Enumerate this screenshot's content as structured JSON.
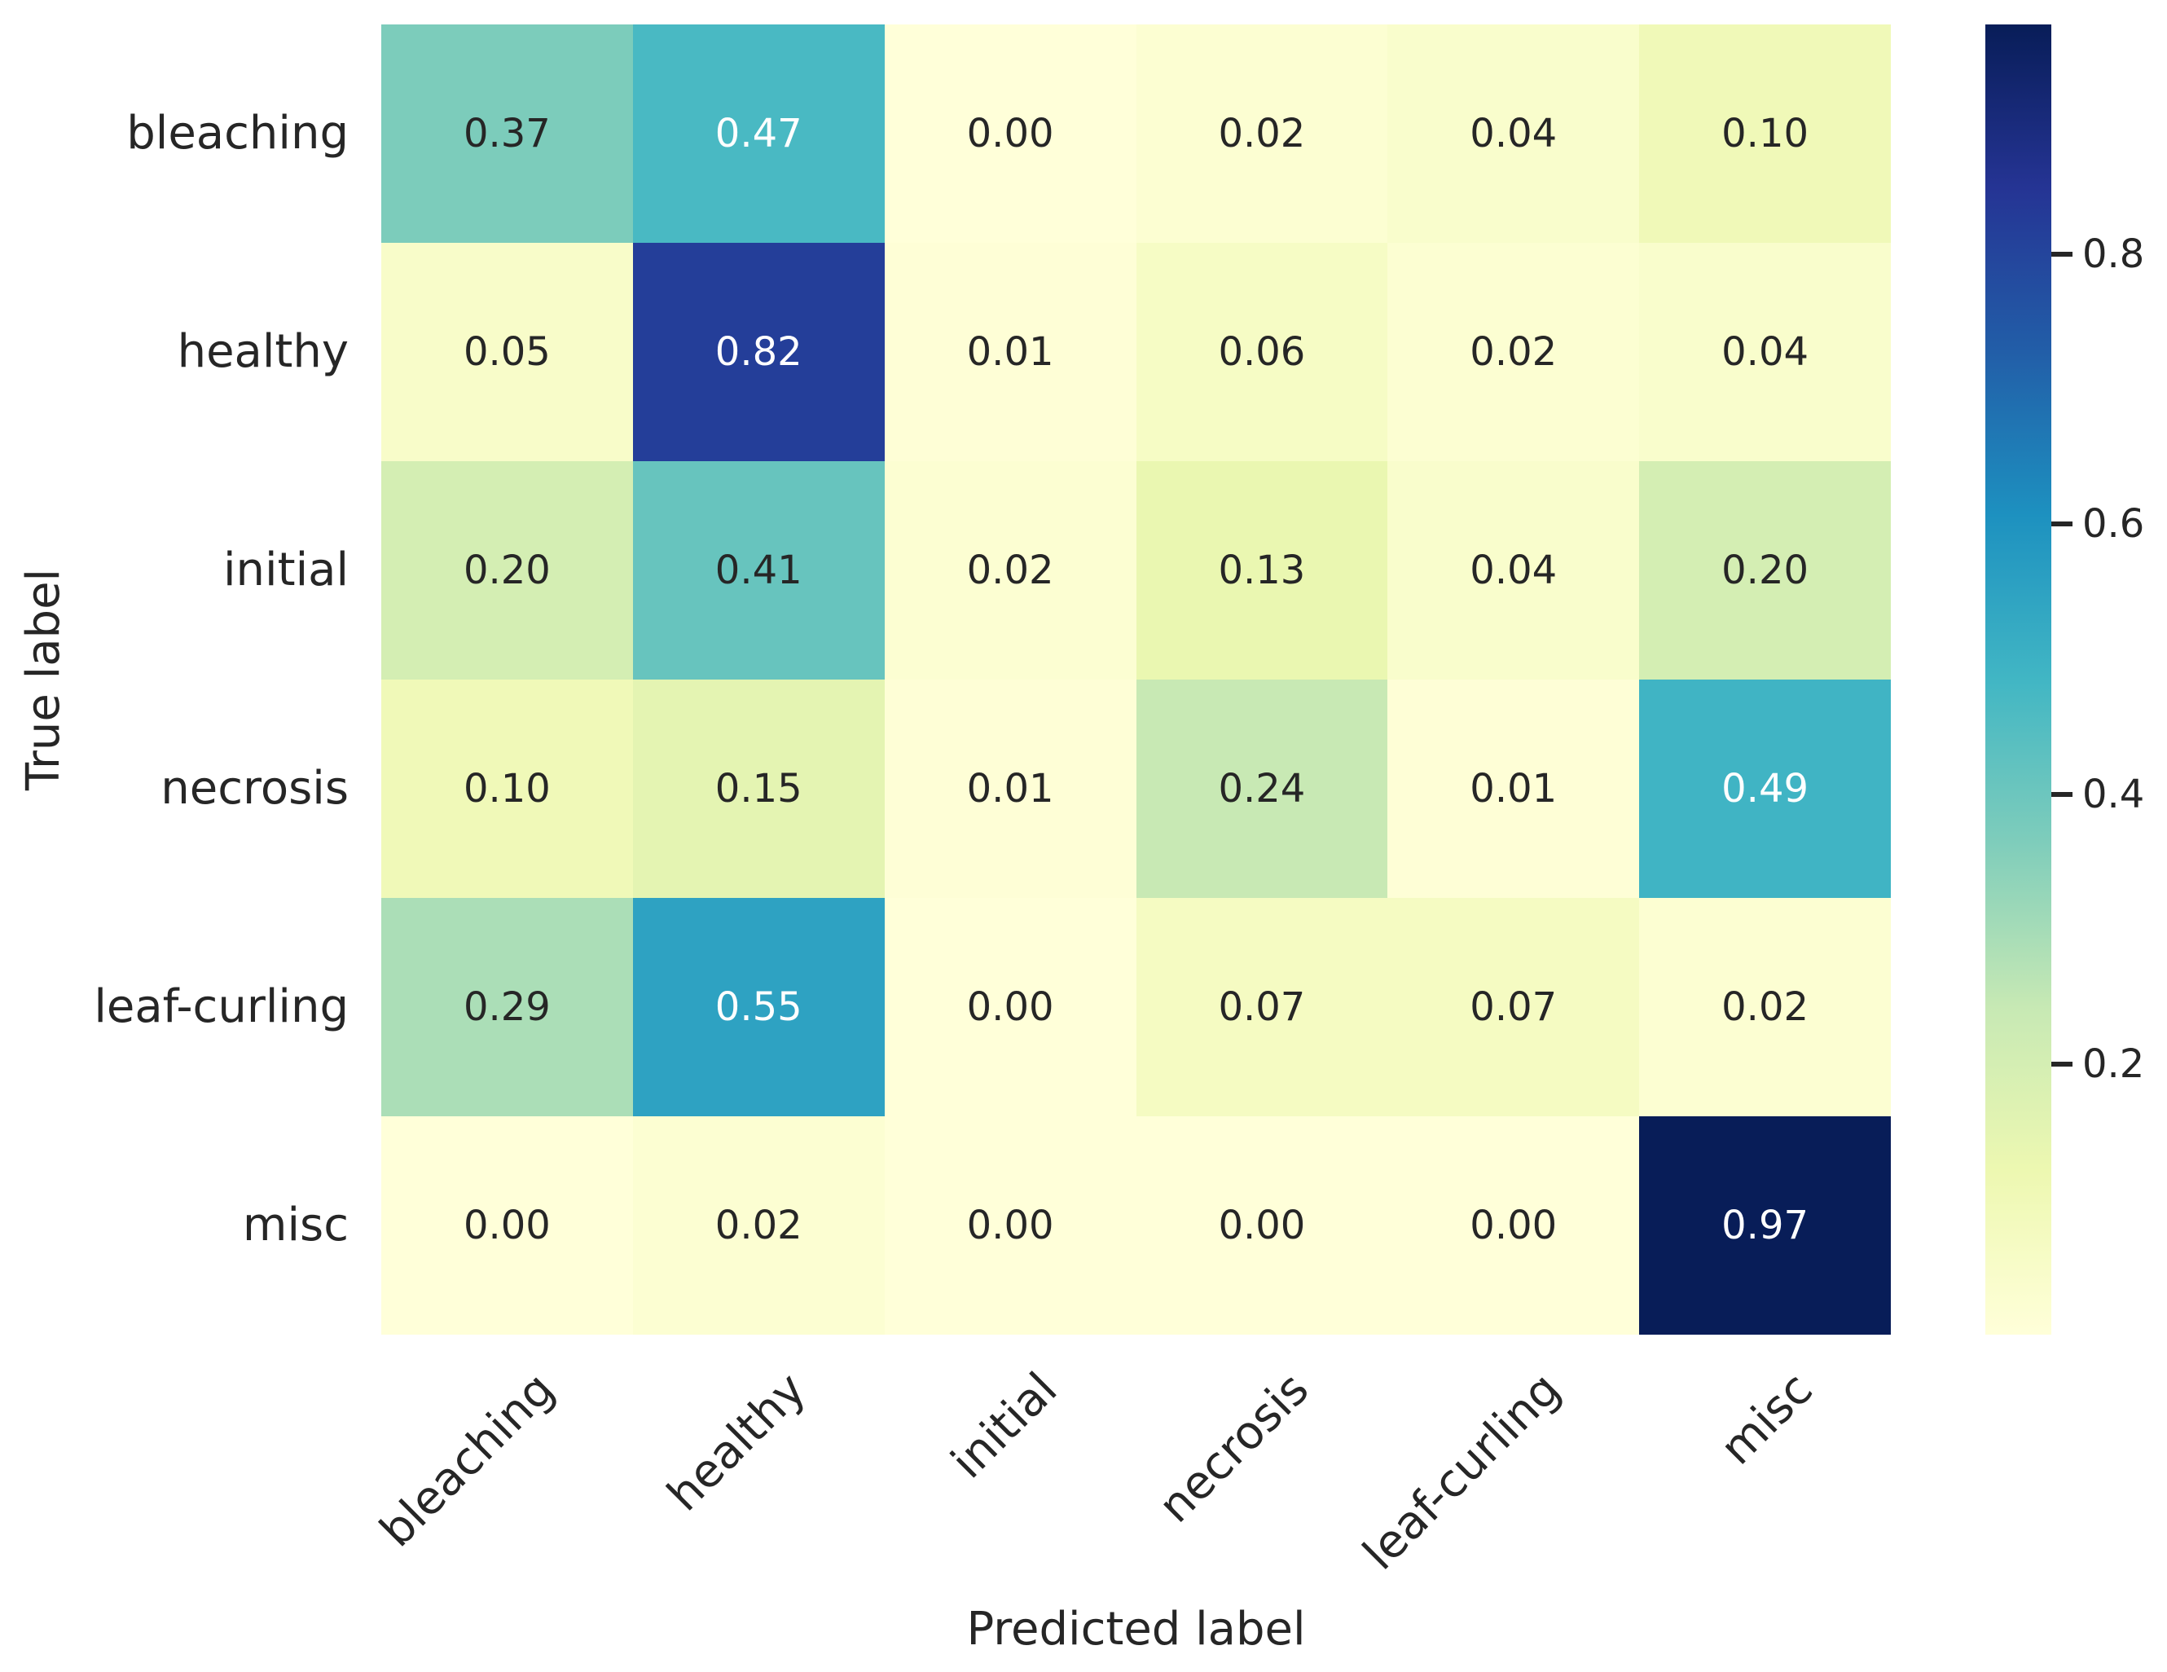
{
  "figure": {
    "background": "#ffffff",
    "text_color": "#262626"
  },
  "chart_data": {
    "type": "heatmap",
    "title": "",
    "xlabel": "Predicted label",
    "ylabel": "True label",
    "x_categories": [
      "bleaching",
      "healthy",
      "initial",
      "necrosis",
      "leaf-curling",
      "misc"
    ],
    "y_categories": [
      "bleaching",
      "healthy",
      "initial",
      "necrosis",
      "leaf-curling",
      "misc"
    ],
    "matrix": [
      [
        0.37,
        0.47,
        0.0,
        0.02,
        0.04,
        0.1
      ],
      [
        0.05,
        0.82,
        0.01,
        0.06,
        0.02,
        0.04
      ],
      [
        0.2,
        0.41,
        0.02,
        0.13,
        0.04,
        0.2
      ],
      [
        0.1,
        0.15,
        0.01,
        0.24,
        0.01,
        0.49
      ],
      [
        0.29,
        0.55,
        0.0,
        0.07,
        0.07,
        0.02
      ],
      [
        0.0,
        0.02,
        0.0,
        0.0,
        0.0,
        0.97
      ]
    ],
    "cell_value_decimals": 2,
    "vmin": 0.0,
    "vmax": 0.97,
    "grid": false,
    "x_tick_rotation_deg": 45,
    "colormap": {
      "name": "YlGnBu",
      "anchors": [
        {
          "pos": 0.0,
          "color": "#ffffd9"
        },
        {
          "pos": 0.125,
          "color": "#edf8b1"
        },
        {
          "pos": 0.25,
          "color": "#c7e9b4"
        },
        {
          "pos": 0.375,
          "color": "#7fcdbb"
        },
        {
          "pos": 0.5,
          "color": "#41b6c4"
        },
        {
          "pos": 0.625,
          "color": "#1d91c0"
        },
        {
          "pos": 0.75,
          "color": "#225ea8"
        },
        {
          "pos": 0.875,
          "color": "#253494"
        },
        {
          "pos": 1.0,
          "color": "#081d58"
        }
      ]
    },
    "colorbar": {
      "position": "right",
      "ticks": [
        0.8,
        0.6,
        0.4,
        0.2
      ],
      "tick_decimals": 1
    },
    "annotation_colors": {
      "dark": "#262626",
      "light": "#ffffff"
    }
  }
}
